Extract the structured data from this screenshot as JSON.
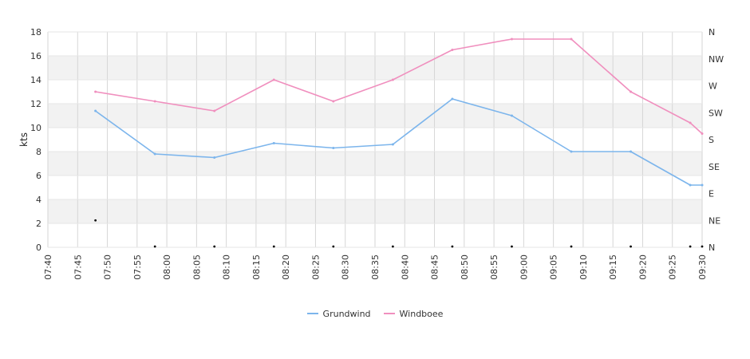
{
  "chart_data": {
    "type": "line",
    "ylabel": "kts",
    "ylim": [
      0,
      18
    ],
    "yticks": [
      "0",
      "2",
      "4",
      "6",
      "8",
      "10",
      "12",
      "14",
      "16",
      "18"
    ],
    "x_ticks": [
      "07:40",
      "07:45",
      "07:50",
      "07:55",
      "08:00",
      "08:05",
      "08:10",
      "08:15",
      "08:20",
      "08:25",
      "08:30",
      "08:35",
      "08:40",
      "08:45",
      "08:50",
      "08:55",
      "09:00",
      "09:05",
      "09:10",
      "09:15",
      "09:20",
      "09:25",
      "09:30"
    ],
    "direction_ticks": [
      "N",
      "NE",
      "E",
      "SE",
      "S",
      "SW",
      "W",
      "NW",
      "N"
    ],
    "grid": true,
    "legend_position": "bottom-center",
    "x": [
      "07:48",
      "07:58",
      "08:08",
      "08:18",
      "08:28",
      "08:38",
      "08:48",
      "08:58",
      "09:08",
      "09:18",
      "09:28",
      "09:30"
    ],
    "series": [
      {
        "name": "Grundwind",
        "color": "#7cb5ec",
        "values": [
          11.4,
          7.8,
          7.5,
          8.7,
          8.3,
          8.6,
          12.4,
          11.0,
          8.0,
          8.0,
          5.2,
          5.2
        ]
      },
      {
        "name": "Windboee",
        "color": "#f08fbe",
        "values": [
          13.0,
          12.2,
          11.4,
          14.0,
          12.2,
          14.0,
          16.5,
          17.4,
          17.4,
          13.0,
          10.4,
          9.5
        ]
      }
    ],
    "direction_markers": {
      "x": [
        "07:48",
        "07:58",
        "08:08",
        "08:18",
        "08:28",
        "08:38",
        "08:48",
        "08:58",
        "09:08",
        "09:18",
        "09:28",
        "09:30"
      ],
      "values": [
        "NE",
        "N",
        "N",
        "N",
        "N",
        "N",
        "N",
        "N",
        "N",
        "N",
        "N",
        "N"
      ]
    }
  }
}
